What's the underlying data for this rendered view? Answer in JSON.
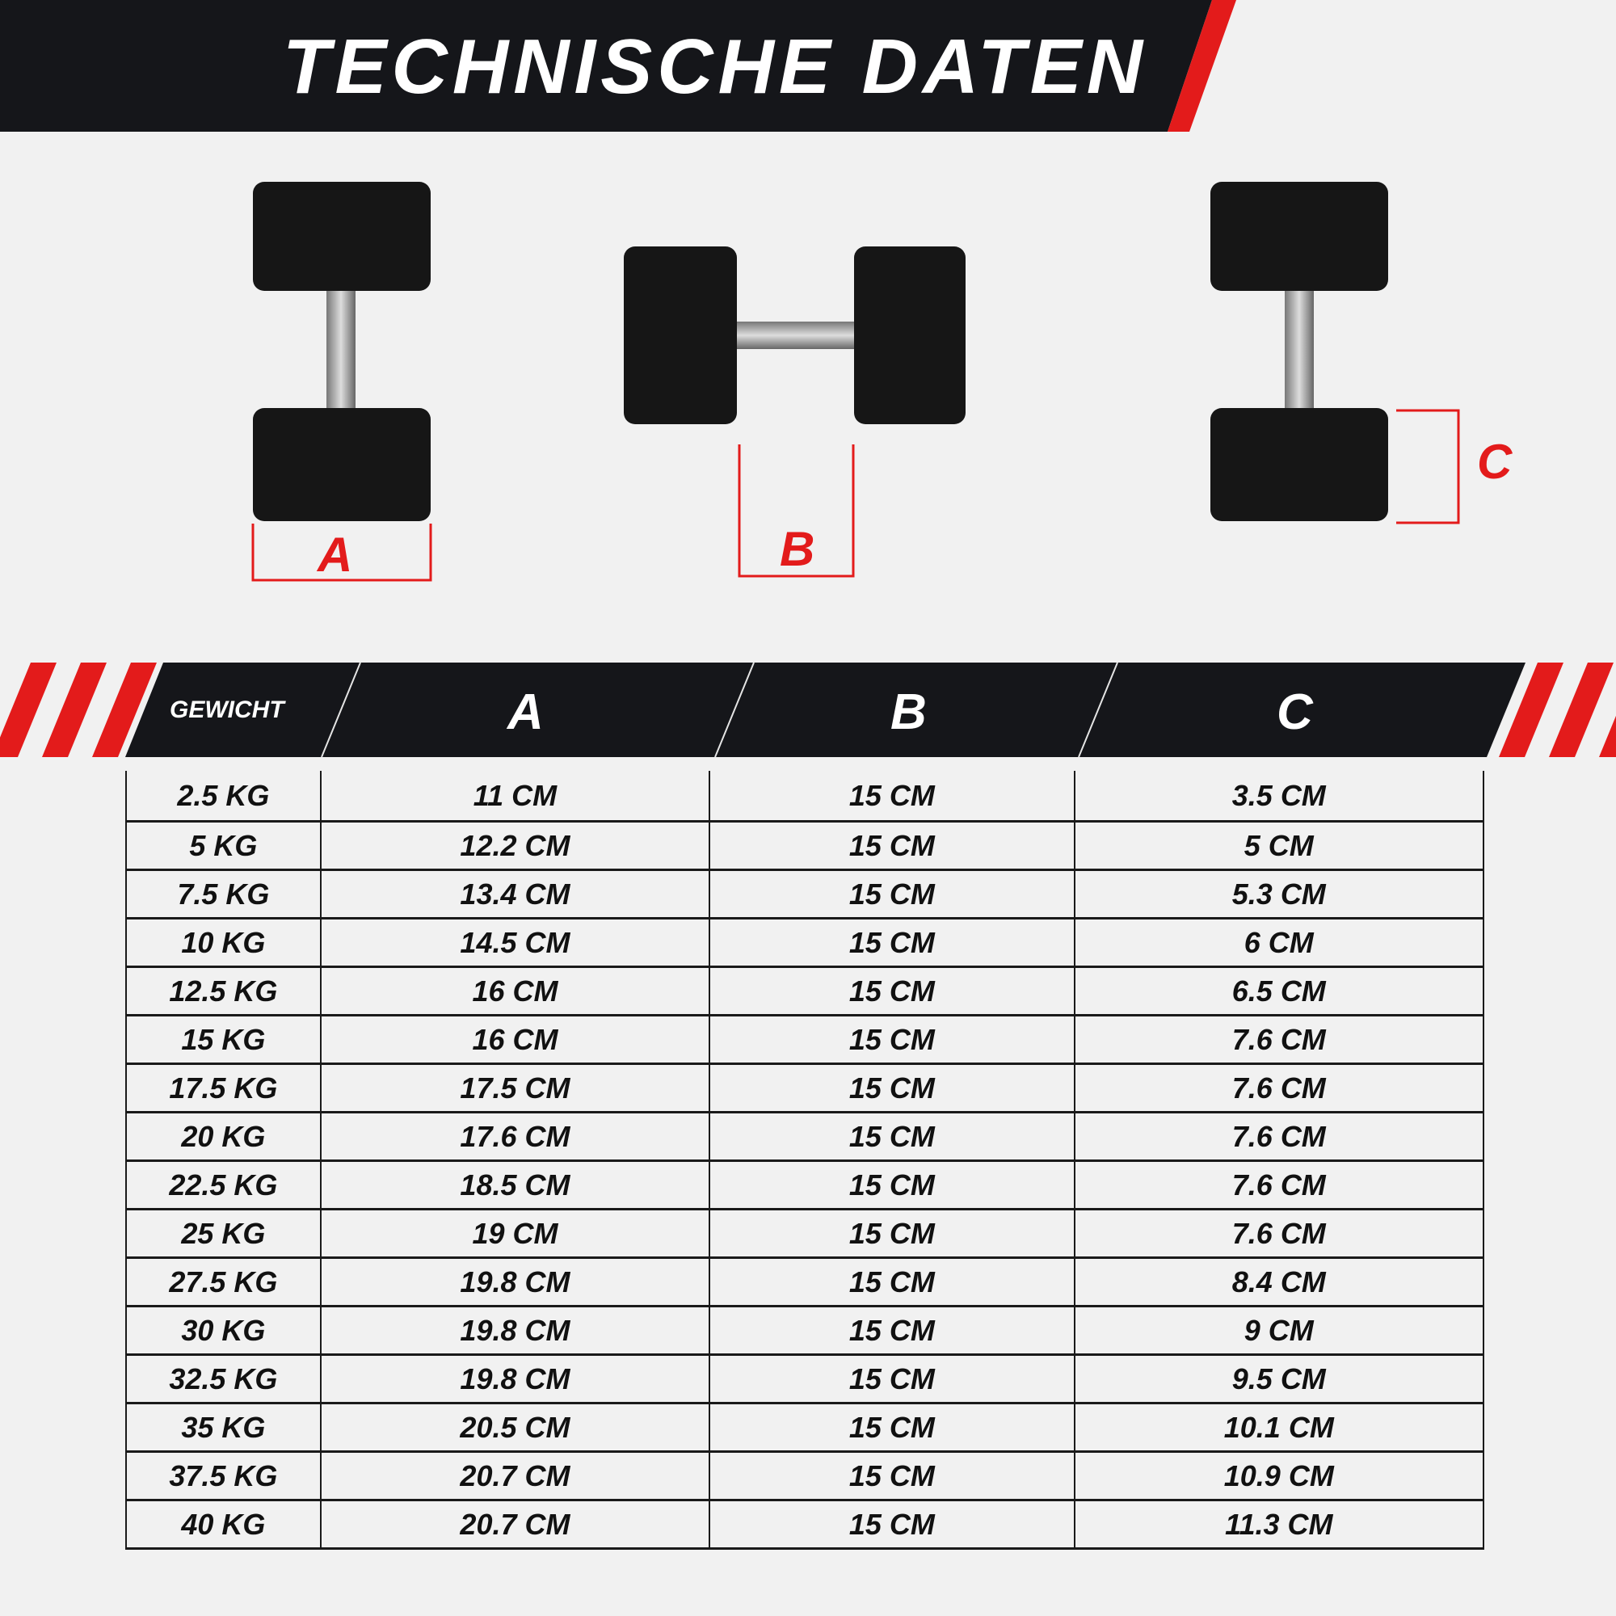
{
  "header": {
    "title": "TECHNISCHE DATEN"
  },
  "dimensions": {
    "a_label": "A",
    "b_label": "B",
    "c_label": "C"
  },
  "colors": {
    "accent": "#e31b1b",
    "dark": "#15161a",
    "background": "#f1f1f1"
  },
  "table": {
    "headers": [
      "GEWICHT",
      "A",
      "B",
      "C"
    ],
    "rows": [
      [
        "2.5 KG",
        "11 CM",
        "15 CM",
        "3.5 CM"
      ],
      [
        "5 KG",
        "12.2 CM",
        "15 CM",
        "5 CM"
      ],
      [
        "7.5 KG",
        "13.4 CM",
        "15 CM",
        "5.3 CM"
      ],
      [
        "10 KG",
        "14.5 CM",
        "15 CM",
        "6 CM"
      ],
      [
        "12.5 KG",
        "16 CM",
        "15 CM",
        "6.5 CM"
      ],
      [
        "15 KG",
        "16 CM",
        "15 CM",
        "7.6 CM"
      ],
      [
        "17.5 KG",
        "17.5 CM",
        "15 CM",
        "7.6 CM"
      ],
      [
        "20 KG",
        "17.6 CM",
        "15 CM",
        "7.6 CM"
      ],
      [
        "22.5 KG",
        "18.5 CM",
        "15 CM",
        "7.6 CM"
      ],
      [
        "25 KG",
        "19 CM",
        "15 CM",
        "7.6 CM"
      ],
      [
        "27.5 KG",
        "19.8 CM",
        "15 CM",
        "8.4 CM"
      ],
      [
        "30 KG",
        "19.8 CM",
        "15 CM",
        "9 CM"
      ],
      [
        "32.5 KG",
        "19.8 CM",
        "15 CM",
        "9.5 CM"
      ],
      [
        "35 KG",
        "20.5 CM",
        "15 CM",
        "10.1 CM"
      ],
      [
        "37.5 KG",
        "20.7 CM",
        "15 CM",
        "10.9 CM"
      ],
      [
        "40 KG",
        "20.7 CM",
        "15 CM",
        "11.3 CM"
      ]
    ]
  }
}
